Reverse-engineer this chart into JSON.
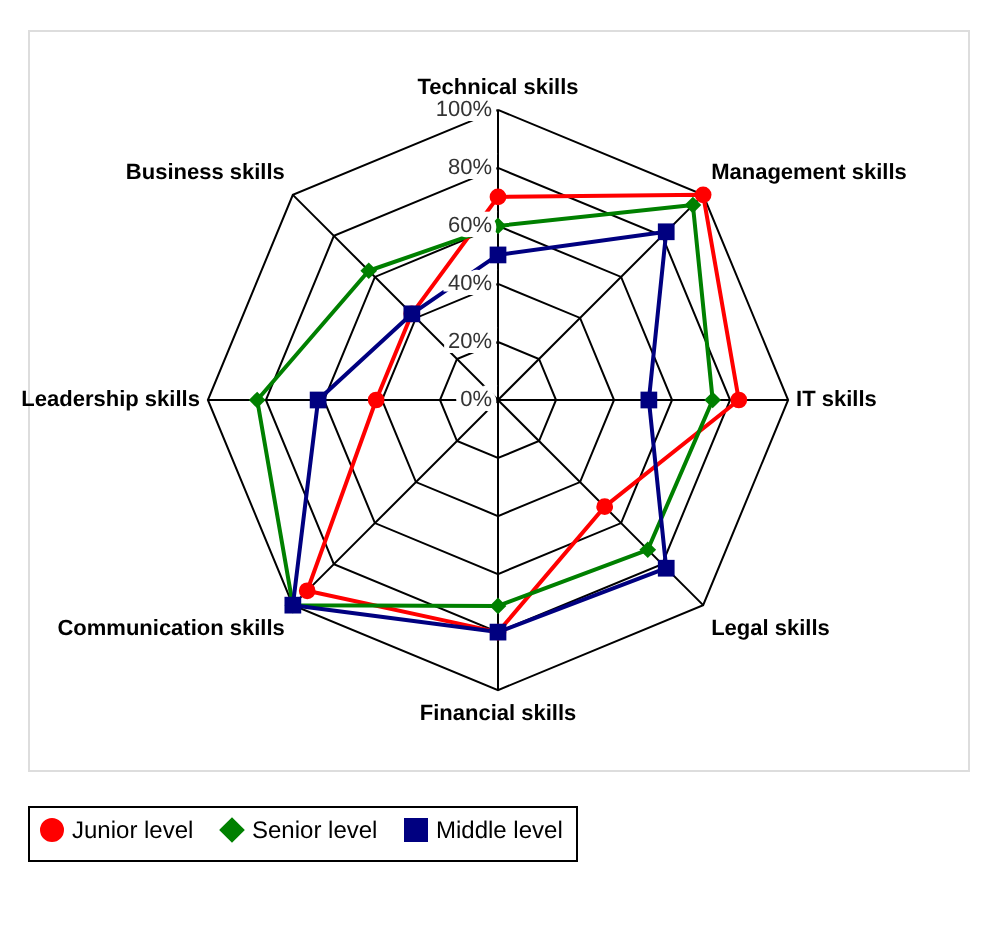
{
  "chart_data": {
    "type": "radar",
    "categories": [
      "Technical skills",
      "Management skills",
      "IT skills",
      "Legal skills",
      "Financial skills",
      "Communication skills",
      "Leadership skills",
      "Business skills"
    ],
    "series": [
      {
        "name": "Junior level",
        "color": "#ff0000",
        "marker": "circle",
        "values": [
          70,
          100,
          83,
          52,
          80,
          93,
          42,
          42
        ]
      },
      {
        "name": "Senior level",
        "color": "#008000",
        "marker": "diamond",
        "values": [
          60,
          95,
          74,
          73,
          71,
          100,
          83,
          63
        ]
      },
      {
        "name": "Middle level",
        "color": "#000080",
        "marker": "square",
        "values": [
          50,
          82,
          52,
          82,
          80,
          100,
          62,
          42
        ]
      }
    ],
    "ylim": [
      0,
      100
    ],
    "yticks": [
      {
        "value": 0,
        "label": "0%"
      },
      {
        "value": 20,
        "label": "20%"
      },
      {
        "value": 40,
        "label": "40%"
      },
      {
        "value": 60,
        "label": "60%"
      },
      {
        "value": 80,
        "label": "80%"
      },
      {
        "value": 100,
        "label": "100%"
      }
    ],
    "grid": true,
    "legend": "bottom"
  }
}
